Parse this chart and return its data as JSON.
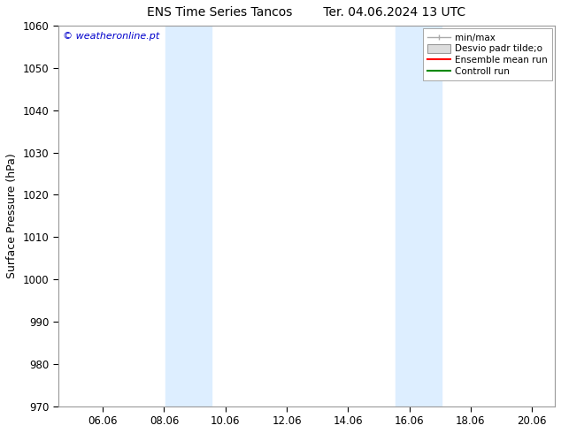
{
  "title": "ENS Time Series Tancos",
  "title2": "Ter. 04.06.2024 13 UTC",
  "ylabel": "Surface Pressure (hPa)",
  "ylim": [
    970,
    1060
  ],
  "yticks": [
    970,
    980,
    990,
    1000,
    1010,
    1020,
    1030,
    1040,
    1050,
    1060
  ],
  "xmin": 4.54,
  "xmax": 20.75,
  "xtick_labels": [
    "06.06",
    "08.06",
    "10.06",
    "12.06",
    "14.06",
    "16.06",
    "18.06",
    "20.06"
  ],
  "xtick_positions": [
    6,
    8,
    10,
    12,
    14,
    16,
    18,
    20
  ],
  "background_color": "#ffffff",
  "plot_bg_color": "#ffffff",
  "watermark": "© weatheronline.pt",
  "watermark_color": "#0000cc",
  "shade_bands": [
    {
      "xmin": 8.04,
      "xmax": 9.54,
      "color": "#ddeeff"
    },
    {
      "xmin": 15.54,
      "xmax": 17.04,
      "color": "#ddeeff"
    }
  ],
  "legend_labels": [
    "min/max",
    "Desvio padr tilde;o",
    "Ensemble mean run",
    "Controll run"
  ],
  "legend_line_color": "#aaaaaa",
  "legend_box_color": "#dddddd",
  "legend_mean_color": "#ff0000",
  "legend_ctrl_color": "#008800",
  "figsize": [
    6.34,
    4.9
  ],
  "dpi": 100
}
